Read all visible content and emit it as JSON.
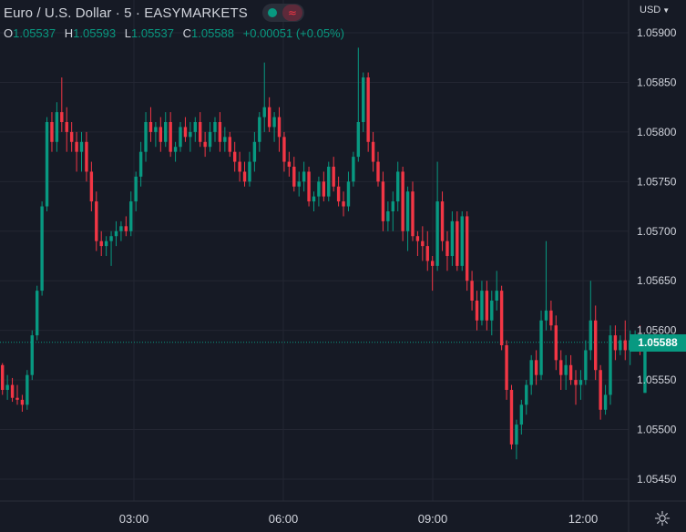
{
  "header": {
    "title": "Euro / U.S. Dollar · 5 · EASYMARKETS",
    "signal_icon": "≈",
    "ohlc": {
      "o_label": "O",
      "o": "1.05537",
      "h_label": "H",
      "h": "1.05593",
      "l_label": "L",
      "l": "1.05537",
      "c_label": "C",
      "c": "1.05588",
      "change": "+0.00051 (+0.05%)"
    }
  },
  "currency_selector": {
    "label": "USD",
    "icon": "chevron-down-icon"
  },
  "last_price_label": "1.05588",
  "settings": {
    "icon": "gear-icon"
  },
  "colors": {
    "background": "#161a25",
    "up": "#089981",
    "down": "#f23645",
    "grid": "#232632",
    "text": "#d1d4dc"
  },
  "chart_data": {
    "type": "candlestick",
    "interval": "5",
    "y_axis": {
      "range": [
        1.0542,
        1.0592
      ],
      "ticks": [
        "1.05450",
        "1.05500",
        "1.05550",
        "1.05600",
        "1.05650",
        "1.05700",
        "1.05750",
        "1.05800",
        "1.05850",
        "1.05900"
      ]
    },
    "x_axis": {
      "ticks": [
        "03:00",
        "06:00",
        "09:00",
        "12:00"
      ]
    },
    "last_price": 1.05588,
    "grid": true,
    "candles": [
      [
        1.05565,
        1.05567,
        1.05535,
        1.0554
      ],
      [
        1.0554,
        1.05555,
        1.0553,
        1.05545
      ],
      [
        1.05545,
        1.05552,
        1.05528,
        1.05532
      ],
      [
        1.05532,
        1.05545,
        1.05525,
        1.0553
      ],
      [
        1.0553,
        1.05535,
        1.05518,
        1.05525
      ],
      [
        1.05525,
        1.0556,
        1.0552,
        1.05555
      ],
      [
        1.05555,
        1.056,
        1.0555,
        1.05595
      ],
      [
        1.05595,
        1.05645,
        1.0559,
        1.0564
      ],
      [
        1.0564,
        1.0573,
        1.05635,
        1.05725
      ],
      [
        1.05725,
        1.05815,
        1.0572,
        1.0581
      ],
      [
        1.0581,
        1.0582,
        1.0578,
        1.0579
      ],
      [
        1.0579,
        1.0583,
        1.0578,
        1.0582
      ],
      [
        1.0582,
        1.05855,
        1.058,
        1.0581
      ],
      [
        1.0581,
        1.05825,
        1.0578,
        1.058
      ],
      [
        1.058,
        1.0581,
        1.0578,
        1.0579
      ],
      [
        1.0579,
        1.058,
        1.0576,
        1.0578
      ],
      [
        1.0578,
        1.058,
        1.0576,
        1.0579
      ],
      [
        1.0579,
        1.058,
        1.0575,
        1.0576
      ],
      [
        1.0576,
        1.0577,
        1.0572,
        1.0573
      ],
      [
        1.0573,
        1.0574,
        1.0568,
        1.0569
      ],
      [
        1.0569,
        1.057,
        1.05675,
        1.05685
      ],
      [
        1.05685,
        1.05695,
        1.05675,
        1.0569
      ],
      [
        1.0569,
        1.057,
        1.05665,
        1.05695
      ],
      [
        1.05695,
        1.0571,
        1.05685,
        1.057
      ],
      [
        1.057,
        1.0571,
        1.0569,
        1.05705
      ],
      [
        1.05705,
        1.05715,
        1.05695,
        1.057
      ],
      [
        1.057,
        1.0574,
        1.05695,
        1.0573
      ],
      [
        1.0573,
        1.0576,
        1.0572,
        1.05755
      ],
      [
        1.05755,
        1.0579,
        1.05745,
        1.0578
      ],
      [
        1.0578,
        1.0582,
        1.0577,
        1.0581
      ],
      [
        1.0581,
        1.05825,
        1.0579,
        1.058
      ],
      [
        1.058,
        1.0581,
        1.05785,
        1.05805
      ],
      [
        1.05805,
        1.05815,
        1.0578,
        1.0579
      ],
      [
        1.0579,
        1.0582,
        1.05785,
        1.0581
      ],
      [
        1.0581,
        1.0582,
        1.05775,
        1.0578
      ],
      [
        1.0578,
        1.0579,
        1.0577,
        1.05785
      ],
      [
        1.05785,
        1.0581,
        1.0578,
        1.05805
      ],
      [
        1.05805,
        1.05815,
        1.0579,
        1.05795
      ],
      [
        1.05795,
        1.0581,
        1.0578,
        1.058
      ],
      [
        1.058,
        1.05815,
        1.0579,
        1.0581
      ],
      [
        1.0581,
        1.0582,
        1.05785,
        1.0579
      ],
      [
        1.0579,
        1.058,
        1.05775,
        1.05785
      ],
      [
        1.05785,
        1.0581,
        1.0578,
        1.058
      ],
      [
        1.058,
        1.05815,
        1.0579,
        1.0581
      ],
      [
        1.0581,
        1.0582,
        1.0578,
        1.0579
      ],
      [
        1.0579,
        1.05805,
        1.0578,
        1.05795
      ],
      [
        1.05795,
        1.058,
        1.05775,
        1.0578
      ],
      [
        1.0578,
        1.0579,
        1.0576,
        1.0577
      ],
      [
        1.0577,
        1.0578,
        1.0575,
        1.0576
      ],
      [
        1.0576,
        1.0577,
        1.05745,
        1.0575
      ],
      [
        1.0575,
        1.0578,
        1.05745,
        1.0577
      ],
      [
        1.0577,
        1.058,
        1.0576,
        1.0579
      ],
      [
        1.0579,
        1.0582,
        1.0578,
        1.05815
      ],
      [
        1.05815,
        1.0587,
        1.058,
        1.05825
      ],
      [
        1.05825,
        1.05835,
        1.058,
        1.05805
      ],
      [
        1.05805,
        1.0582,
        1.0579,
        1.05815
      ],
      [
        1.05815,
        1.05825,
        1.0578,
        1.05795
      ],
      [
        1.05795,
        1.058,
        1.0576,
        1.0577
      ],
      [
        1.0577,
        1.0578,
        1.05755,
        1.05765
      ],
      [
        1.05765,
        1.05775,
        1.0574,
        1.05745
      ],
      [
        1.05745,
        1.0576,
        1.05735,
        1.0575
      ],
      [
        1.0575,
        1.0577,
        1.0574,
        1.0576
      ],
      [
        1.0576,
        1.05765,
        1.05725,
        1.0573
      ],
      [
        1.0573,
        1.0574,
        1.0572,
        1.05735
      ],
      [
        1.05735,
        1.05755,
        1.05725,
        1.0575
      ],
      [
        1.0575,
        1.0576,
        1.0573,
        1.05735
      ],
      [
        1.05735,
        1.0577,
        1.0573,
        1.05765
      ],
      [
        1.05765,
        1.05775,
        1.0574,
        1.05745
      ],
      [
        1.05745,
        1.05755,
        1.05725,
        1.0573
      ],
      [
        1.0573,
        1.0574,
        1.05715,
        1.05725
      ],
      [
        1.05725,
        1.0576,
        1.0572,
        1.0575
      ],
      [
        1.0575,
        1.0578,
        1.05745,
        1.05775
      ],
      [
        1.05775,
        1.05885,
        1.0577,
        1.0581
      ],
      [
        1.0581,
        1.0586,
        1.058,
        1.05855
      ],
      [
        1.05855,
        1.0586,
        1.0578,
        1.0579
      ],
      [
        1.0579,
        1.058,
        1.0576,
        1.0577
      ],
      [
        1.0577,
        1.0578,
        1.05745,
        1.0575
      ],
      [
        1.0575,
        1.0576,
        1.057,
        1.0571
      ],
      [
        1.0571,
        1.0573,
        1.057,
        1.0572
      ],
      [
        1.0572,
        1.0574,
        1.057,
        1.0573
      ],
      [
        1.0573,
        1.0577,
        1.0572,
        1.0576
      ],
      [
        1.0576,
        1.05765,
        1.0569,
        1.057
      ],
      [
        1.057,
        1.05745,
        1.0568,
        1.0574
      ],
      [
        1.0574,
        1.0575,
        1.0569,
        1.05695
      ],
      [
        1.05695,
        1.057,
        1.05675,
        1.0569
      ],
      [
        1.0569,
        1.05705,
        1.0567,
        1.05685
      ],
      [
        1.05685,
        1.057,
        1.0566,
        1.0567
      ],
      [
        1.0567,
        1.05675,
        1.0564,
        1.05665
      ],
      [
        1.05665,
        1.0577,
        1.0566,
        1.0573
      ],
      [
        1.0573,
        1.0574,
        1.0568,
        1.0569
      ],
      [
        1.0569,
        1.057,
        1.0566,
        1.05675
      ],
      [
        1.05675,
        1.0572,
        1.05665,
        1.0571
      ],
      [
        1.0571,
        1.0572,
        1.0566,
        1.05665
      ],
      [
        1.05665,
        1.0572,
        1.0566,
        1.05715
      ],
      [
        1.05715,
        1.0572,
        1.0564,
        1.0565
      ],
      [
        1.0565,
        1.0566,
        1.0562,
        1.0563
      ],
      [
        1.0563,
        1.0564,
        1.056,
        1.0561
      ],
      [
        1.0561,
        1.0565,
        1.05605,
        1.0564
      ],
      [
        1.0564,
        1.0565,
        1.056,
        1.0561
      ],
      [
        1.0561,
        1.0564,
        1.05595,
        1.0563
      ],
      [
        1.0563,
        1.0566,
        1.0562,
        1.0564
      ],
      [
        1.0564,
        1.05645,
        1.0558,
        1.05585
      ],
      [
        1.05585,
        1.0559,
        1.0553,
        1.0554
      ],
      [
        1.0554,
        1.05545,
        1.0548,
        1.05485
      ],
      [
        1.05485,
        1.0551,
        1.0547,
        1.05505
      ],
      [
        1.05505,
        1.0553,
        1.05495,
        1.05525
      ],
      [
        1.05525,
        1.0555,
        1.05515,
        1.05545
      ],
      [
        1.05545,
        1.05575,
        1.05535,
        1.0557
      ],
      [
        1.0557,
        1.0558,
        1.05545,
        1.05555
      ],
      [
        1.05555,
        1.0562,
        1.0555,
        1.0561
      ],
      [
        1.0561,
        1.0569,
        1.056,
        1.0562
      ],
      [
        1.0562,
        1.0563,
        1.056,
        1.05605
      ],
      [
        1.05605,
        1.05615,
        1.0556,
        1.0557
      ],
      [
        1.0557,
        1.0558,
        1.0554,
        1.05555
      ],
      [
        1.05555,
        1.05575,
        1.0554,
        1.05565
      ],
      [
        1.05565,
        1.05575,
        1.05545,
        1.0555
      ],
      [
        1.0555,
        1.0556,
        1.05525,
        1.05545
      ],
      [
        1.05545,
        1.0556,
        1.0553,
        1.0555
      ],
      [
        1.0555,
        1.0559,
        1.05545,
        1.0558
      ],
      [
        1.0558,
        1.0565,
        1.0557,
        1.0561
      ],
      [
        1.0561,
        1.05625,
        1.0555,
        1.0556
      ],
      [
        1.0556,
        1.05565,
        1.0551,
        1.0552
      ],
      [
        1.0552,
        1.05545,
        1.05515,
        1.05535
      ],
      [
        1.05535,
        1.05605,
        1.05525,
        1.05595
      ],
      [
        1.05595,
        1.05605,
        1.0557,
        1.0558
      ],
      [
        1.0558,
        1.05595,
        1.05575,
        1.0559
      ],
      [
        1.0559,
        1.0561,
        1.0557,
        1.0558
      ],
      [
        1.0558,
        1.056,
        1.05565,
        1.0559
      ],
      [
        1.0559,
        1.056,
        1.0558,
        1.05595
      ],
      [
        1.05595,
        1.05605,
        1.05575,
        1.0558
      ],
      [
        1.05537,
        1.05593,
        1.05537,
        1.05588
      ]
    ]
  }
}
